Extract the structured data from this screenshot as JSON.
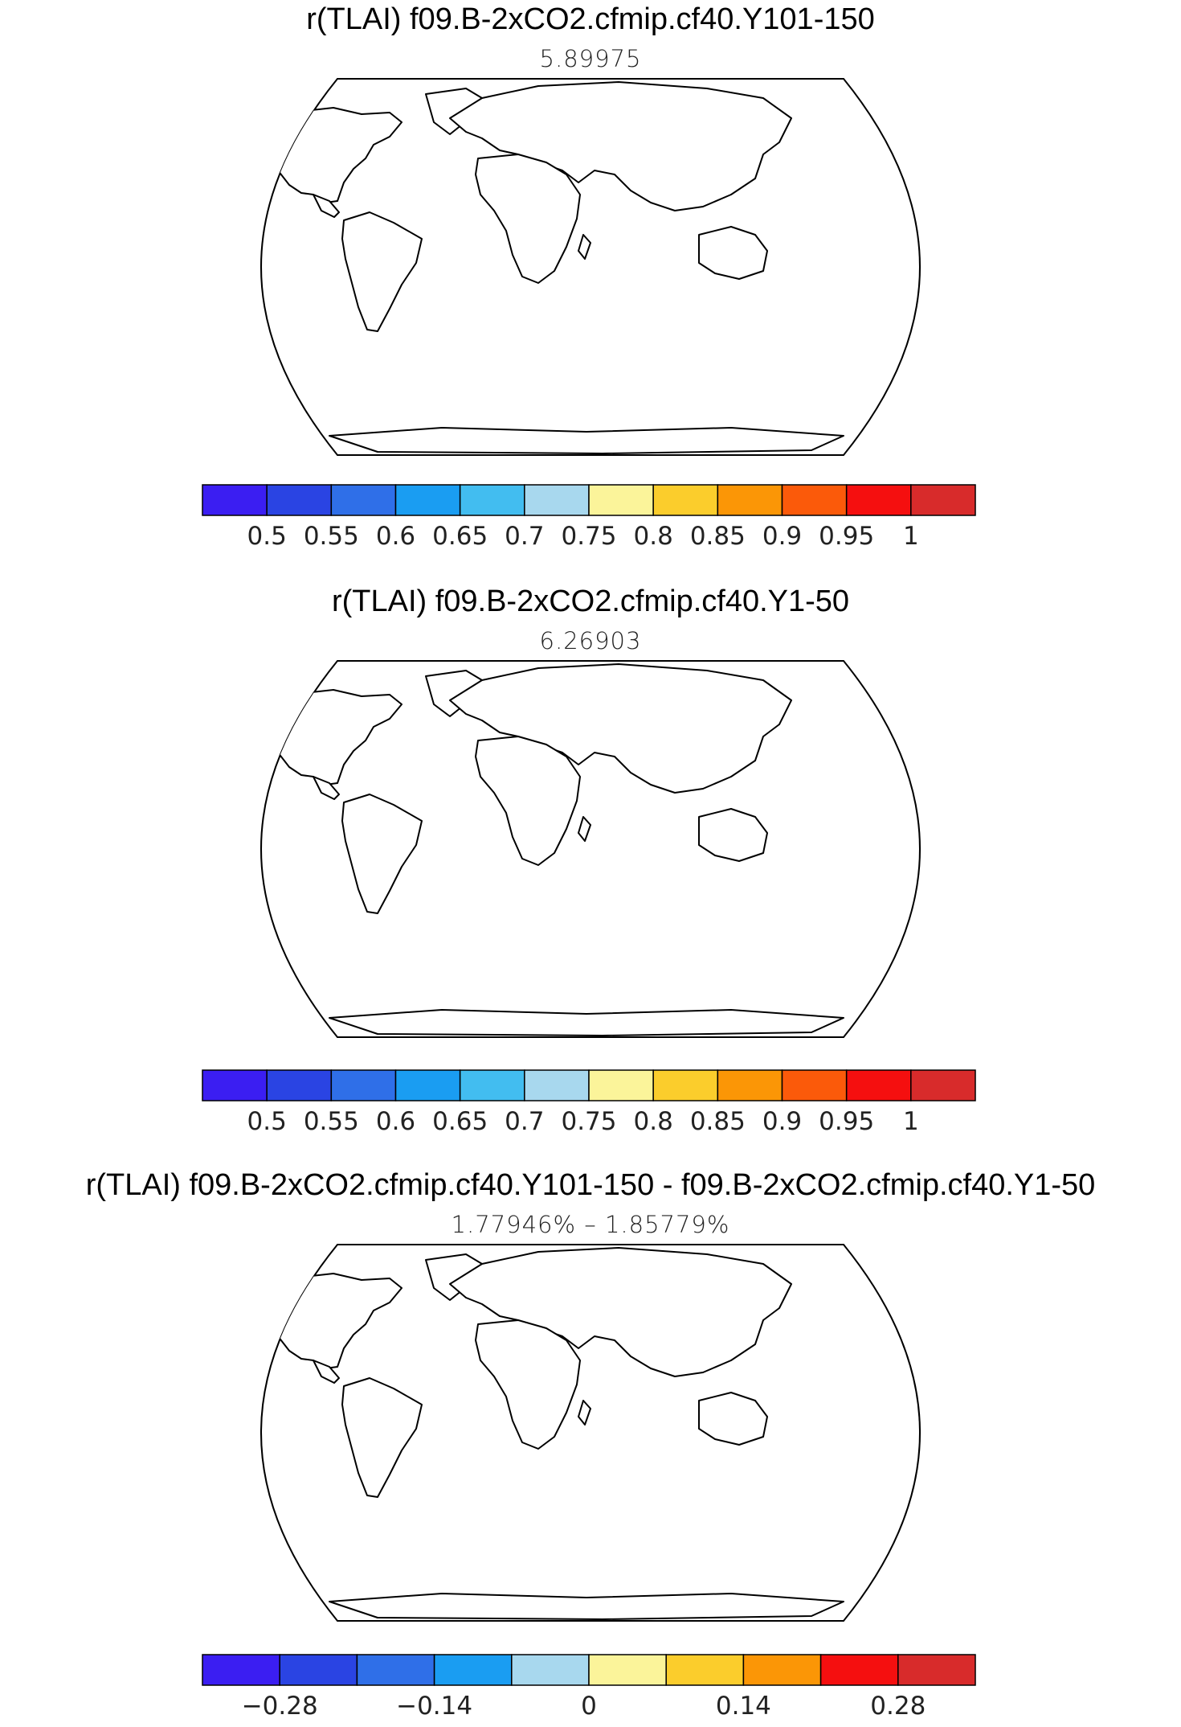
{
  "panels": [
    {
      "title": "r(TLAI) f09.B-2xCO2.cfmip.cf40.Y101-150",
      "subtitle": "5.89975",
      "colorbar": {
        "colors": [
          "#3b1ef2",
          "#2a44e3",
          "#2f6fe8",
          "#1a9df2",
          "#42bdf0",
          "#a8d8ee",
          "#fbf49a",
          "#fbcd2c",
          "#fb9606",
          "#fb5a0a",
          "#f50f0f",
          "#d82b2b"
        ],
        "labels": [
          "0.5",
          "0.55",
          "0.6",
          "0.65",
          "0.7",
          "0.75",
          "0.8",
          "0.85",
          "0.9",
          "0.95",
          "1"
        ]
      }
    },
    {
      "title": "r(TLAI) f09.B-2xCO2.cfmip.cf40.Y1-50",
      "subtitle": "6.26903",
      "colorbar": {
        "colors": [
          "#3b1ef2",
          "#2a44e3",
          "#2f6fe8",
          "#1a9df2",
          "#42bdf0",
          "#a8d8ee",
          "#fbf49a",
          "#fbcd2c",
          "#fb9606",
          "#fb5a0a",
          "#f50f0f",
          "#d82b2b"
        ],
        "labels": [
          "0.5",
          "0.55",
          "0.6",
          "0.65",
          "0.7",
          "0.75",
          "0.8",
          "0.85",
          "0.9",
          "0.95",
          "1"
        ]
      }
    },
    {
      "title": "r(TLAI) f09.B-2xCO2.cfmip.cf40.Y101-150 - f09.B-2xCO2.cfmip.cf40.Y1-50",
      "subtitle": "1.77946% – 1.85779%",
      "colorbar": {
        "colors": [
          "#3b1ef2",
          "#2a44e3",
          "#2f6fe8",
          "#1a9df2",
          "#a8d8ee",
          "#fbf49a",
          "#fbcd2c",
          "#fb9606",
          "#f50f0f",
          "#d82b2b"
        ],
        "labels": [
          "−0.28",
          "−0.14",
          "0",
          "0.14",
          "0.28"
        ]
      }
    }
  ]
}
